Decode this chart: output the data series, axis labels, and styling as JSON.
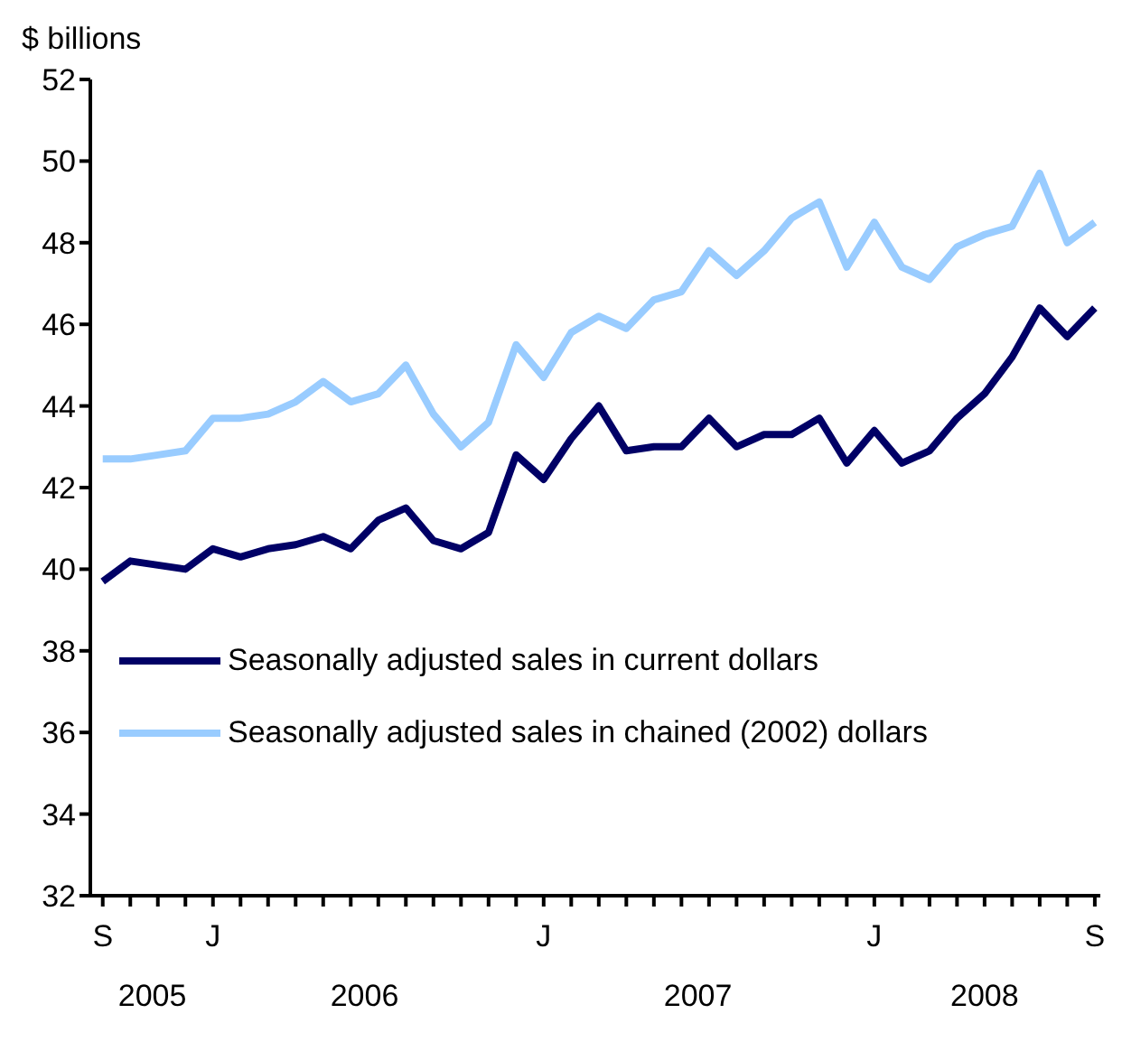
{
  "chart_data": {
    "type": "line",
    "ylabel": "$ billions",
    "categories": [
      "S",
      null,
      null,
      null,
      "J",
      null,
      null,
      null,
      null,
      null,
      null,
      null,
      null,
      null,
      null,
      null,
      "J",
      null,
      null,
      null,
      null,
      null,
      null,
      null,
      null,
      null,
      null,
      null,
      "J",
      null,
      null,
      null,
      null,
      null,
      null,
      null,
      "S"
    ],
    "series": [
      {
        "name": "Seasonally adjusted sales in current dollars",
        "color": "#000066",
        "values": [
          39.7,
          40.2,
          40.1,
          40.0,
          40.5,
          40.3,
          40.5,
          40.6,
          40.8,
          40.5,
          41.2,
          41.5,
          40.7,
          40.5,
          40.9,
          42.8,
          42.2,
          43.2,
          44.0,
          42.9,
          43.0,
          43.0,
          43.7,
          43.0,
          43.3,
          43.3,
          43.7,
          42.6,
          43.4,
          42.6,
          42.9,
          43.7,
          44.3,
          45.2,
          46.4,
          45.7,
          46.4
        ]
      },
      {
        "name": "Seasonally adjusted sales in chained (2002) dollars",
        "color": "#99ccff",
        "values": [
          42.7,
          42.7,
          42.8,
          42.9,
          43.7,
          43.7,
          43.8,
          44.1,
          44.6,
          44.1,
          44.3,
          45.0,
          43.8,
          43.0,
          43.6,
          45.5,
          44.7,
          45.8,
          46.2,
          45.9,
          46.6,
          46.8,
          47.8,
          47.2,
          47.8,
          48.6,
          49.0,
          47.4,
          48.5,
          47.4,
          47.1,
          47.9,
          48.2,
          48.4,
          49.7,
          48.0,
          48.5
        ]
      }
    ],
    "ylim": [
      32,
      52
    ],
    "yticks": [
      32,
      34,
      36,
      38,
      40,
      42,
      44,
      46,
      48,
      50,
      52
    ],
    "annotations": [
      "2005",
      "2006",
      "2007",
      "2008"
    ],
    "legend": "bottom left",
    "grid": false,
    "marker": "none",
    "line_style": "solid"
  }
}
